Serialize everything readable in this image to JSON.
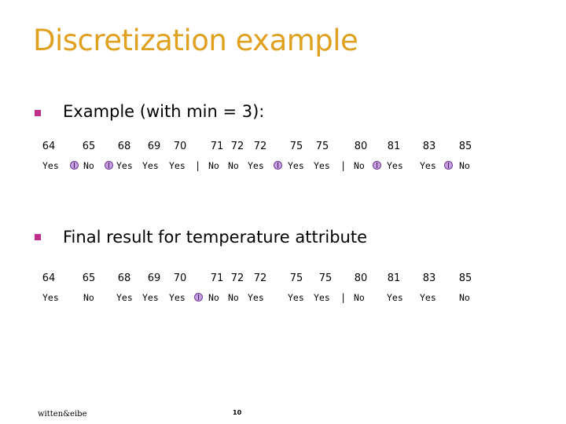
{
  "title": "Discretization example",
  "bullet1": "Example (with min = 3):",
  "bullet2": "Final result for temperature attribute",
  "temperatures": [
    "64",
    "65",
    "68",
    "69",
    "70",
    "71",
    "72",
    "72",
    "75",
    "75",
    "80",
    "81",
    "83",
    "85"
  ],
  "row1_values": [
    "Yes",
    "No",
    "Yes",
    "Yes",
    "Yes",
    "No",
    "No",
    "Yes",
    "Yes",
    "Yes",
    "No",
    "Yes",
    "Yes",
    "No"
  ],
  "row2_values": [
    "Yes",
    "No",
    "Yes",
    "Yes",
    "Yes",
    "No",
    "No",
    "Yes",
    "Yes",
    "Yes",
    "No",
    "Yes",
    "Yes",
    "No"
  ],
  "separator": "|",
  "footer": "witten&eibe",
  "page": "10",
  "colors": {
    "title": "#e0a020",
    "bullet": "#c0308a",
    "split_marker": "#c8a0e0"
  }
}
